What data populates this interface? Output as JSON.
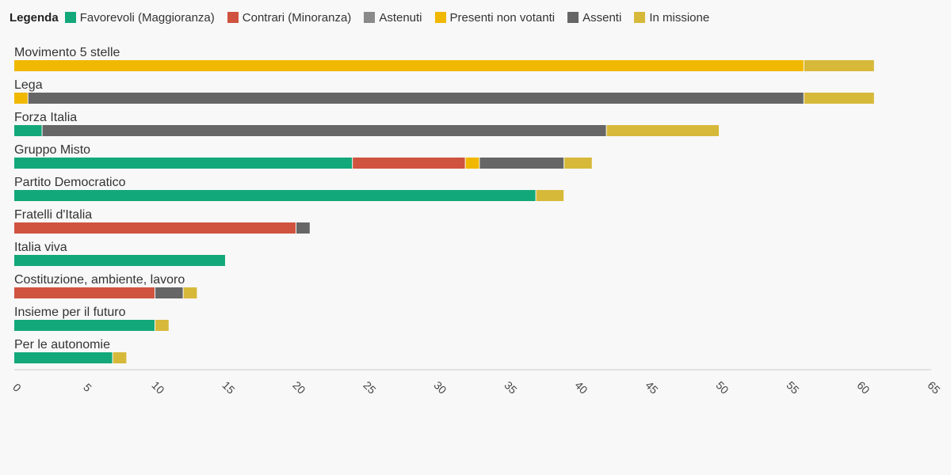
{
  "legend": {
    "title": "Legenda",
    "items": [
      {
        "label": "Favorevoli (Maggioranza)",
        "color": "#13a87a"
      },
      {
        "label": "Contrari (Minoranza)",
        "color": "#d0533f"
      },
      {
        "label": "Astenuti",
        "color": "#8a8a8a"
      },
      {
        "label": "Presenti non votanti",
        "color": "#f0b800"
      },
      {
        "label": "Assenti",
        "color": "#666666"
      },
      {
        "label": "In missione",
        "color": "#d7b93a"
      }
    ]
  },
  "chart_data": {
    "type": "bar",
    "orientation": "horizontal",
    "stacked": true,
    "title": "",
    "xlabel": "",
    "ylabel": "",
    "xlim": [
      0,
      65
    ],
    "xticks": [
      0,
      5,
      10,
      15,
      20,
      25,
      30,
      35,
      40,
      45,
      50,
      55,
      60,
      65
    ],
    "grid": false,
    "legend_position": "top-left",
    "categories": [
      "Movimento 5 stelle",
      "Lega",
      "Forza Italia",
      "Gruppo Misto",
      "Partito Democratico",
      "Fratelli d'Italia",
      "Italia viva",
      "Costituzione, ambiente, lavoro",
      "Insieme per il futuro",
      "Per le autonomie"
    ],
    "series": [
      {
        "name": "Favorevoli (Maggioranza)",
        "color": "#13a87a",
        "values": [
          0,
          0,
          2,
          24,
          37,
          0,
          15,
          0,
          10,
          7
        ]
      },
      {
        "name": "Contrari (Minoranza)",
        "color": "#d0533f",
        "values": [
          0,
          0,
          0,
          8,
          0,
          20,
          0,
          10,
          0,
          0
        ]
      },
      {
        "name": "Astenuti",
        "color": "#8a8a8a",
        "values": [
          0,
          0,
          0,
          0,
          0,
          0,
          0,
          0,
          0,
          0
        ]
      },
      {
        "name": "Presenti non votanti",
        "color": "#f0b800",
        "values": [
          56,
          1,
          0,
          1,
          0,
          0,
          0,
          0,
          0,
          0
        ]
      },
      {
        "name": "Assenti",
        "color": "#666666",
        "values": [
          0,
          55,
          40,
          6,
          0,
          1,
          0,
          2,
          0,
          0
        ]
      },
      {
        "name": "In missione",
        "color": "#d7b93a",
        "values": [
          5,
          5,
          8,
          2,
          2,
          0,
          0,
          1,
          1,
          1
        ]
      }
    ]
  }
}
